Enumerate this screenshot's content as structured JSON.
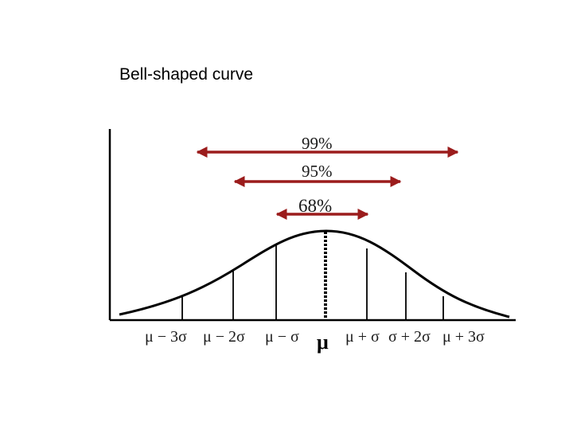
{
  "title": "Bell-shaped curve",
  "colors": {
    "arrow": "#9b1c1c",
    "curve": "#000000"
  },
  "intervals": [
    {
      "label": "99%"
    },
    {
      "label": "95%"
    },
    {
      "label": "68%"
    }
  ],
  "tick_labels": {
    "m3": "μ − 3σ",
    "m2": "μ − 2σ",
    "m1": "μ − σ",
    "mu": "μ",
    "p1": "μ + σ",
    "p2": "σ + 2σ",
    "p3": "μ + 3σ"
  }
}
